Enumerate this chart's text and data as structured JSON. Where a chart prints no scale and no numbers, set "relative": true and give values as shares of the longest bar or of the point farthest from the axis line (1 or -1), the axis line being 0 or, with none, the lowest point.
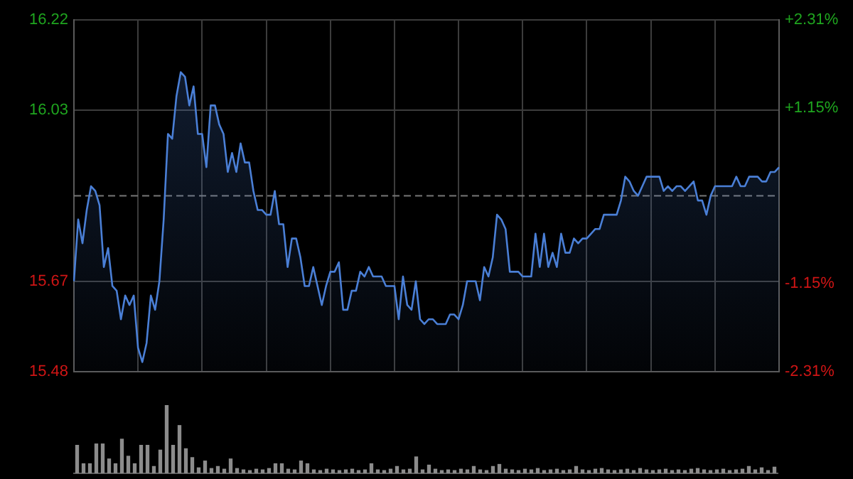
{
  "chart_data": [
    {
      "type": "area",
      "categories": [
        null,
        null,
        null,
        null,
        null,
        null,
        null,
        null,
        null,
        null,
        null,
        null,
        null,
        null,
        null,
        null,
        null,
        null,
        null,
        null,
        null,
        null,
        null,
        null,
        null,
        null,
        null,
        null,
        null,
        null,
        null,
        null,
        null,
        null,
        null,
        null,
        null,
        null,
        null,
        null,
        null,
        null,
        null,
        null,
        null,
        null,
        null,
        null,
        null,
        null,
        null,
        null,
        null,
        null,
        null,
        null,
        null,
        null,
        null,
        null,
        null,
        null,
        null,
        null,
        null,
        null,
        null,
        null,
        null,
        null,
        null,
        null,
        null,
        null,
        null,
        null,
        null,
        null,
        null,
        null,
        null,
        null,
        null,
        null,
        null,
        null,
        null,
        null,
        null,
        null,
        null,
        null,
        null,
        null,
        null,
        null,
        null,
        null,
        null,
        null,
        null,
        null,
        null,
        null,
        null,
        null,
        null,
        null,
        null,
        null,
        null,
        null,
        null,
        null,
        null,
        null,
        null,
        null,
        null,
        null,
        null,
        null,
        null,
        null,
        null,
        null,
        null,
        null,
        null,
        null,
        null,
        null,
        null,
        null,
        null,
        null,
        null,
        null,
        null,
        null,
        null,
        null,
        null,
        null,
        null,
        null,
        null,
        null,
        null,
        null,
        null,
        null,
        null,
        null,
        null,
        null,
        null,
        null,
        null,
        null,
        null,
        null,
        null,
        null,
        null,
        null
      ],
      "series": [
        {
          "color": "#4a7fd6",
          "values": [
            15.67,
            15.8,
            15.75,
            15.82,
            15.87,
            15.86,
            15.83,
            15.7,
            15.74,
            15.66,
            15.65,
            15.59,
            15.64,
            15.62,
            15.64,
            15.53,
            15.5,
            15.54,
            15.64,
            15.61,
            15.67,
            15.8,
            15.98,
            15.97,
            16.06,
            16.11,
            16.1,
            16.04,
            16.08,
            15.98,
            15.98,
            15.91,
            16.04,
            16.04,
            16.0,
            15.98,
            15.9,
            15.94,
            15.9,
            15.96,
            15.92,
            15.92,
            15.86,
            15.82,
            15.82,
            15.81,
            15.81,
            15.86,
            15.79,
            15.79,
            15.7,
            15.76,
            15.76,
            15.72,
            15.66,
            15.66,
            15.7,
            15.66,
            15.62,
            15.66,
            15.69,
            15.69,
            15.71,
            15.61,
            15.61,
            15.65,
            15.65,
            15.69,
            15.68,
            15.7,
            15.68,
            15.68,
            15.68,
            15.66,
            15.66,
            15.66,
            15.59,
            15.68,
            15.62,
            15.61,
            15.67,
            15.59,
            15.58,
            15.59,
            15.59,
            15.58,
            15.58,
            15.58,
            15.6,
            15.6,
            15.59,
            15.62,
            15.67,
            15.67,
            15.67,
            15.63,
            15.7,
            15.68,
            15.72,
            15.81,
            15.8,
            15.78,
            15.69,
            15.69,
            15.69,
            15.68,
            15.68,
            15.68,
            15.77,
            15.7,
            15.77,
            15.7,
            15.73,
            15.7,
            15.77,
            15.73,
            15.73,
            15.76,
            15.75,
            15.76,
            15.76,
            15.77,
            15.78,
            15.78,
            15.81,
            15.81,
            15.81,
            15.81,
            15.84,
            15.89,
            15.88,
            15.86,
            15.85,
            15.87,
            15.89,
            15.89,
            15.89,
            15.89,
            15.86,
            15.87,
            15.86,
            15.87,
            15.87,
            15.86,
            15.87,
            15.88,
            15.84,
            15.84,
            15.81,
            15.85,
            15.87,
            15.87,
            15.87,
            15.87,
            15.87,
            15.89,
            15.87,
            15.87,
            15.89,
            15.89,
            15.89,
            15.88,
            15.88,
            15.9,
            15.9,
            15.91
          ]
        }
      ],
      "ylim": [
        15.48,
        16.22
      ],
      "yticks": [
        15.48,
        15.67,
        16.03,
        16.22
      ],
      "y2lim": [
        -2.31,
        2.31
      ],
      "y2ticks": [
        {
          "value": -2.31,
          "label": "-2.31%"
        },
        {
          "value": -1.15,
          "label": "-1.15%"
        },
        {
          "value": 1.15,
          "label": "+1.15%"
        },
        {
          "value": 2.31,
          "label": "+2.31%"
        }
      ],
      "ref_lines": [
        {
          "axis": "y",
          "value": 15.85,
          "color": "#777777",
          "line_style": "dashed"
        }
      ],
      "grid": true,
      "tick_labels": "y",
      "marker": "none",
      "line_style": "solid"
    },
    {
      "type": "bar",
      "relative": true,
      "tick_labels": false,
      "categories": [
        null,
        null,
        null,
        null,
        null,
        null,
        null,
        null,
        null,
        null,
        null,
        null,
        null,
        null,
        null,
        null,
        null,
        null,
        null,
        null,
        null,
        null,
        null,
        null,
        null,
        null,
        null,
        null,
        null,
        null,
        null,
        null,
        null,
        null,
        null,
        null,
        null,
        null,
        null,
        null,
        null,
        null,
        null,
        null,
        null,
        null,
        null,
        null,
        null,
        null,
        null,
        null,
        null,
        null,
        null,
        null,
        null,
        null,
        null,
        null,
        null,
        null,
        null,
        null,
        null,
        null,
        null,
        null,
        null,
        null,
        null,
        null,
        null,
        null,
        null,
        null,
        null,
        null,
        null,
        null,
        null,
        null,
        null,
        null,
        null,
        null,
        null,
        null,
        null,
        null,
        null,
        null,
        null,
        null,
        null,
        null,
        null,
        null,
        null,
        null,
        null,
        null,
        null,
        null,
        null,
        null,
        null,
        null,
        null,
        null
      ],
      "series": [
        {
          "color": "#8c8c8c",
          "values": [
            0.41,
            0.14,
            0.14,
            0.43,
            0.43,
            0.21,
            0.14,
            0.5,
            0.25,
            0.14,
            0.41,
            0.41,
            0.1,
            0.34,
            1,
            0.41,
            0.7,
            0.36,
            0.23,
            0.08,
            0.18,
            0.07,
            0.1,
            0.06,
            0.21,
            0.07,
            0.05,
            0.04,
            0.06,
            0.05,
            0.07,
            0.14,
            0.14,
            0.06,
            0.05,
            0.18,
            0.14,
            0.05,
            0.04,
            0.06,
            0.05,
            0.04,
            0.05,
            0.06,
            0.04,
            0.05,
            0.14,
            0.05,
            0.04,
            0.06,
            0.1,
            0.05,
            0.06,
            0.24,
            0.05,
            0.12,
            0.06,
            0.04,
            0.05,
            0.04,
            0.06,
            0.05,
            0.1,
            0.05,
            0.04,
            0.1,
            0.13,
            0.06,
            0.05,
            0.04,
            0.06,
            0.05,
            0.07,
            0.04,
            0.05,
            0.06,
            0.04,
            0.05,
            0.1,
            0.05,
            0.04,
            0.06,
            0.07,
            0.05,
            0.04,
            0.05,
            0.06,
            0.04,
            0.07,
            0.05,
            0.04,
            0.05,
            0.06,
            0.04,
            0.05,
            0.04,
            0.06,
            0.07,
            0.05,
            0.04,
            0.05,
            0.06,
            0.04,
            0.05,
            0.06,
            0.1,
            0.05,
            0.08,
            0.04,
            0.09
          ]
        }
      ]
    }
  ]
}
